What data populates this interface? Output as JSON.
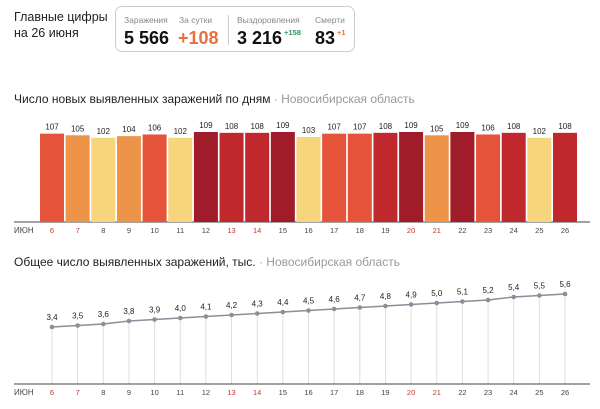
{
  "header": {
    "title_line1": "Главные цифры",
    "title_line2": "на 26 июня"
  },
  "stats": {
    "infections_label": "Заражения",
    "infections": "5 566",
    "daily_label": "За сутки",
    "daily": "+108",
    "recovered_label": "Выздоровления",
    "recovered": "3 216",
    "recovered_delta": "+158",
    "deaths_label": "Смерти",
    "deaths": "83",
    "deaths_delta": "+1"
  },
  "colors": {
    "accent_orange": "#e8703a",
    "green": "#2a9d5c",
    "weekend": "#c0392b"
  },
  "chart_data": [
    {
      "type": "bar",
      "title": "Число новых выявленных заражений по дням",
      "region": "Новосибирская область",
      "month_label": "ИЮН",
      "categories": [
        "6",
        "7",
        "8",
        "9",
        "10",
        "11",
        "12",
        "13",
        "14",
        "15",
        "16",
        "17",
        "18",
        "19",
        "20",
        "21",
        "22",
        "23",
        "24",
        "25",
        "26"
      ],
      "weekend": [
        "6",
        "7",
        "13",
        "14",
        "20",
        "21"
      ],
      "values": [
        107,
        105,
        102,
        104,
        106,
        102,
        109,
        108,
        108,
        109,
        103,
        107,
        107,
        108,
        109,
        105,
        109,
        106,
        108,
        102,
        108
      ]
    },
    {
      "type": "line",
      "title": "Общее число выявленных заражений, тыс.",
      "region": "Новосибирская область",
      "month_label": "ИЮН",
      "categories": [
        "6",
        "7",
        "8",
        "9",
        "10",
        "11",
        "12",
        "13",
        "14",
        "15",
        "16",
        "17",
        "18",
        "19",
        "20",
        "21",
        "22",
        "23",
        "24",
        "25",
        "26"
      ],
      "values": [
        3.4,
        3.5,
        3.6,
        3.8,
        3.9,
        4.0,
        4.1,
        4.2,
        4.3,
        4.4,
        4.5,
        4.6,
        4.7,
        4.8,
        4.9,
        5.0,
        5.1,
        5.2,
        5.4,
        5.5,
        5.6
      ],
      "labels": [
        "3,4",
        "3,5",
        "3,6",
        "3,8",
        "3,9",
        "4,0",
        "4,1",
        "4,2",
        "4,3",
        "4,4",
        "4,5",
        "4,6",
        "4,7",
        "4,8",
        "4,9",
        "5,0",
        "5,1",
        "5,2",
        "5,4",
        "5,5",
        "5,6"
      ]
    }
  ]
}
